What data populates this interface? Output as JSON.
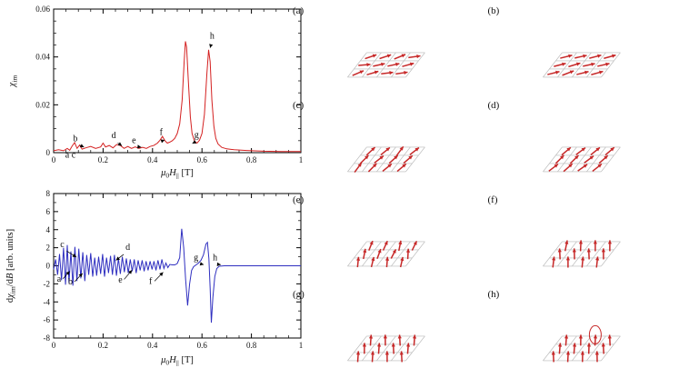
{
  "chart_data": [
    {
      "id": "chi-im",
      "type": "line",
      "color": "#d42020",
      "x_range": [
        0,
        1
      ],
      "y_range": [
        0,
        0.06
      ],
      "x_ticks": [
        0,
        0.2,
        0.4,
        0.6,
        0.8,
        1
      ],
      "x_tick_labels": [
        "0",
        "0.2",
        "0.4",
        "0.6",
        "0.8",
        "1"
      ],
      "y_ticks": [
        0,
        0.02,
        0.04,
        0.06
      ],
      "y_tick_labels": [
        "0",
        "0.02",
        "0.04",
        "0.06"
      ],
      "x_minor": 0.05,
      "y_minor": 0.005,
      "xlabel_parts": [
        {
          "t": "μ",
          "i": true
        },
        {
          "t": "0",
          "sub": true
        },
        {
          "t": "H",
          "i": true
        },
        {
          "t": "||",
          "sub": true
        },
        {
          "t": " [T]"
        }
      ],
      "ylabel_parts": [
        {
          "t": "χ",
          "i": true
        },
        {
          "t": "im",
          "sub": true
        }
      ],
      "points": [
        [
          0,
          0.0008
        ],
        [
          0.02,
          0.0012
        ],
        [
          0.04,
          0.0008
        ],
        [
          0.055,
          0.0018
        ],
        [
          0.065,
          0.001
        ],
        [
          0.075,
          0.0028
        ],
        [
          0.085,
          0.0042
        ],
        [
          0.095,
          0.0018
        ],
        [
          0.105,
          0.0032
        ],
        [
          0.115,
          0.0015
        ],
        [
          0.13,
          0.002
        ],
        [
          0.15,
          0.0026
        ],
        [
          0.17,
          0.0018
        ],
        [
          0.19,
          0.0024
        ],
        [
          0.2,
          0.004
        ],
        [
          0.21,
          0.0024
        ],
        [
          0.225,
          0.003
        ],
        [
          0.24,
          0.002
        ],
        [
          0.255,
          0.0034
        ],
        [
          0.27,
          0.003
        ],
        [
          0.285,
          0.0018
        ],
        [
          0.3,
          0.0026
        ],
        [
          0.315,
          0.0018
        ],
        [
          0.33,
          0.0024
        ],
        [
          0.345,
          0.0018
        ],
        [
          0.36,
          0.0022
        ],
        [
          0.375,
          0.0018
        ],
        [
          0.39,
          0.0026
        ],
        [
          0.405,
          0.003
        ],
        [
          0.42,
          0.004
        ],
        [
          0.43,
          0.0052
        ],
        [
          0.44,
          0.0068
        ],
        [
          0.45,
          0.005
        ],
        [
          0.46,
          0.004
        ],
        [
          0.47,
          0.0044
        ],
        [
          0.48,
          0.005
        ],
        [
          0.49,
          0.006
        ],
        [
          0.5,
          0.008
        ],
        [
          0.51,
          0.012
        ],
        [
          0.52,
          0.022
        ],
        [
          0.528,
          0.038
        ],
        [
          0.533,
          0.0465
        ],
        [
          0.538,
          0.044
        ],
        [
          0.545,
          0.03
        ],
        [
          0.553,
          0.015
        ],
        [
          0.56,
          0.008
        ],
        [
          0.57,
          0.0048
        ],
        [
          0.58,
          0.004
        ],
        [
          0.59,
          0.0052
        ],
        [
          0.6,
          0.008
        ],
        [
          0.61,
          0.016
        ],
        [
          0.62,
          0.033
        ],
        [
          0.627,
          0.043
        ],
        [
          0.633,
          0.038
        ],
        [
          0.64,
          0.022
        ],
        [
          0.648,
          0.011
        ],
        [
          0.656,
          0.006
        ],
        [
          0.665,
          0.0036
        ],
        [
          0.68,
          0.0022
        ],
        [
          0.7,
          0.0016
        ],
        [
          0.73,
          0.0012
        ],
        [
          0.78,
          0.0009
        ],
        [
          0.85,
          0.0006
        ],
        [
          0.92,
          0.0005
        ],
        [
          1,
          0.0005
        ]
      ],
      "annotations": [
        {
          "text": "b",
          "fx": 0.088,
          "fy": 0.92,
          "tx": 0.123,
          "ty": 0.962
        },
        {
          "text": "a c",
          "fx": 0.068,
          "fy": 1.035
        },
        {
          "text": "d",
          "fx": 0.243,
          "fy": 0.9,
          "tx": 0.276,
          "ty": 0.952
        },
        {
          "text": "e",
          "fx": 0.325,
          "fy": 0.935,
          "tx": 0.354,
          "ty": 0.962
        },
        {
          "text": "f",
          "fx": 0.435,
          "fy": 0.875,
          "tx": 0.449,
          "ty": 0.912
        },
        {
          "text": "g",
          "fx": 0.578,
          "fy": 0.895,
          "tx": 0.561,
          "ty": 0.936
        },
        {
          "text": "h",
          "fx": 0.641,
          "fy": 0.205,
          "tx": 0.633,
          "ty": 0.27
        }
      ]
    },
    {
      "id": "dchi-db",
      "type": "line",
      "color": "#2f2fc0",
      "x_range": [
        0,
        1
      ],
      "y_range": [
        -8,
        8
      ],
      "x_ticks": [
        0,
        0.2,
        0.4,
        0.6,
        0.8,
        1
      ],
      "x_tick_labels": [
        "0",
        "0.2",
        "0.4",
        "0.6",
        "0.8",
        "1"
      ],
      "y_ticks": [
        -8,
        -6,
        -4,
        -2,
        0,
        2,
        4,
        6,
        8
      ],
      "y_tick_labels": [
        "-8",
        "-6",
        "-4",
        "-2",
        "0",
        "2",
        "4",
        "6",
        "8"
      ],
      "x_minor": 0.05,
      "y_minor": 1,
      "xlabel_parts": [
        {
          "t": "μ",
          "i": true
        },
        {
          "t": "0",
          "sub": true
        },
        {
          "t": "H",
          "i": true
        },
        {
          "t": "||",
          "sub": true
        },
        {
          "t": " [T]"
        }
      ],
      "ylabel_parts": [
        {
          "t": "d"
        },
        {
          "t": "χ",
          "i": true
        },
        {
          "t": "im",
          "sub": true
        },
        {
          "t": "/d"
        },
        {
          "t": "B",
          "i": true
        },
        {
          "t": " [arb. units]"
        }
      ],
      "points": [
        [
          0,
          -0.4
        ],
        [
          0.008,
          0.7
        ],
        [
          0.016,
          -1.0
        ],
        [
          0.024,
          1.3
        ],
        [
          0.032,
          -1.6
        ],
        [
          0.04,
          2.0
        ],
        [
          0.048,
          -2.1
        ],
        [
          0.055,
          2.3
        ],
        [
          0.062,
          -1.9
        ],
        [
          0.07,
          1.6
        ],
        [
          0.078,
          -2.2
        ],
        [
          0.086,
          2.1
        ],
        [
          0.094,
          -1.7
        ],
        [
          0.102,
          1.9
        ],
        [
          0.11,
          -1.4
        ],
        [
          0.118,
          1.5
        ],
        [
          0.126,
          -1.7
        ],
        [
          0.134,
          1.2
        ],
        [
          0.142,
          -1.0
        ],
        [
          0.15,
          1.4
        ],
        [
          0.158,
          -1.2
        ],
        [
          0.166,
          0.9
        ],
        [
          0.174,
          -1.1
        ],
        [
          0.182,
          1.0
        ],
        [
          0.19,
          -0.9
        ],
        [
          0.198,
          1.3
        ],
        [
          0.206,
          -1.2
        ],
        [
          0.214,
          0.9
        ],
        [
          0.222,
          -0.8
        ],
        [
          0.23,
          1.1
        ],
        [
          0.238,
          -1.0
        ],
        [
          0.246,
          1.2
        ],
        [
          0.254,
          -1.1
        ],
        [
          0.262,
          0.8
        ],
        [
          0.27,
          -0.9
        ],
        [
          0.278,
          1.0
        ],
        [
          0.286,
          -0.7
        ],
        [
          0.294,
          0.8
        ],
        [
          0.302,
          -0.8
        ],
        [
          0.31,
          0.7
        ],
        [
          0.318,
          -0.6
        ],
        [
          0.326,
          0.7
        ],
        [
          0.334,
          -0.8
        ],
        [
          0.342,
          0.6
        ],
        [
          0.35,
          -0.5
        ],
        [
          0.358,
          0.6
        ],
        [
          0.366,
          -0.6
        ],
        [
          0.374,
          0.5
        ],
        [
          0.382,
          -0.5
        ],
        [
          0.39,
          0.5
        ],
        [
          0.398,
          -0.4
        ],
        [
          0.406,
          0.5
        ],
        [
          0.414,
          -0.5
        ],
        [
          0.422,
          0.6
        ],
        [
          0.43,
          -0.4
        ],
        [
          0.438,
          0.7
        ],
        [
          0.446,
          -0.3
        ],
        [
          0.454,
          0.3
        ],
        [
          0.462,
          -0.2
        ],
        [
          0.47,
          0.15
        ],
        [
          0.48,
          0.1
        ],
        [
          0.49,
          0.1
        ],
        [
          0.5,
          0.25
        ],
        [
          0.51,
          0.9
        ],
        [
          0.518,
          4.1
        ],
        [
          0.526,
          2.0
        ],
        [
          0.534,
          -1.5
        ],
        [
          0.542,
          -4.4
        ],
        [
          0.55,
          -2.0
        ],
        [
          0.558,
          -0.5
        ],
        [
          0.566,
          -0.1
        ],
        [
          0.576,
          0.1
        ],
        [
          0.586,
          0.3
        ],
        [
          0.596,
          0.6
        ],
        [
          0.606,
          1.2
        ],
        [
          0.616,
          2.4
        ],
        [
          0.622,
          2.6
        ],
        [
          0.628,
          0.8
        ],
        [
          0.633,
          -2.5
        ],
        [
          0.638,
          -6.3
        ],
        [
          0.644,
          -3.5
        ],
        [
          0.652,
          -1.2
        ],
        [
          0.66,
          -0.3
        ],
        [
          0.67,
          -0.05
        ],
        [
          0.69,
          0
        ],
        [
          0.72,
          0
        ],
        [
          0.78,
          0
        ],
        [
          0.85,
          0
        ],
        [
          0.92,
          0
        ],
        [
          1,
          0
        ]
      ],
      "annotations": [
        {
          "text": "c",
          "fx": 0.035,
          "fy": 0.37,
          "tx": 0.092,
          "ty": 0.44
        },
        {
          "text": "a",
          "fx": 0.022,
          "fy": 0.61,
          "tx": 0.065,
          "ty": 0.538
        },
        {
          "text": "b",
          "fx": 0.068,
          "fy": 0.63,
          "tx": 0.117,
          "ty": 0.552
        },
        {
          "text": "d",
          "fx": 0.3,
          "fy": 0.39,
          "tx": 0.252,
          "ty": 0.462
        },
        {
          "text": "e",
          "fx": 0.27,
          "fy": 0.615,
          "tx": 0.317,
          "ty": 0.53
        },
        {
          "text": "f",
          "fx": 0.392,
          "fy": 0.625,
          "tx": 0.443,
          "ty": 0.545
        },
        {
          "text": "g",
          "fx": 0.576,
          "fy": 0.462,
          "tx": 0.607,
          "ty": 0.492
        },
        {
          "text": "h",
          "fx": 0.653,
          "fy": 0.462,
          "tx": 0.676,
          "ty": 0.492
        }
      ]
    }
  ],
  "spin_style": {
    "arrow_color": "#c62828",
    "grid_color": "#b8b8b8"
  },
  "spin_panels": [
    {
      "label": "(a)",
      "vec": [
        13,
        -3
      ],
      "jitter": 10
    },
    {
      "label": "(b)",
      "vec": [
        13,
        -4
      ],
      "jitter": 5
    },
    {
      "label": "(c)",
      "vec": [
        9,
        -9
      ],
      "jitter": 10
    },
    {
      "label": "(d)",
      "vec": [
        10,
        -8
      ],
      "jitter": 7
    },
    {
      "label": "(e)",
      "vec": [
        3,
        -11
      ],
      "jitter": 14
    },
    {
      "label": "(f)",
      "vec": [
        1,
        -12
      ],
      "jitter": 8
    },
    {
      "label": "(g)",
      "vec": [
        0,
        -12
      ],
      "jitter": 5
    },
    {
      "label": "(h)",
      "vec": [
        0,
        -12
      ],
      "jitter": 5,
      "highlight": true
    }
  ]
}
